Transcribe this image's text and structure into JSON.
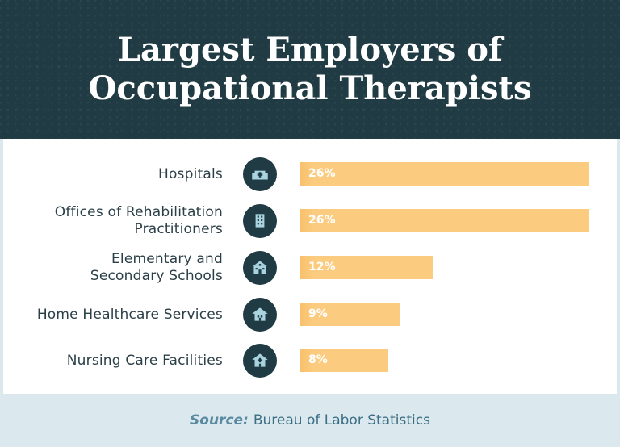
{
  "title_line1": "Largest Employers of",
  "title_line2": "Occupational Therapists",
  "colors": {
    "header_bg": "#203b43",
    "panel_bg": "#ffffff",
    "frame_bg": "#dbe9ee",
    "bar": "#fbc97a",
    "icon_bg": "#203b43",
    "icon_fg": "#a9d3df",
    "source_text": "#3b6e85"
  },
  "chart_data": {
    "type": "bar",
    "orientation": "horizontal",
    "title": "Largest Employers of Occupational Therapists",
    "unit": "%",
    "xlim": [
      0,
      26
    ],
    "grid": false,
    "legend": "none",
    "categories": [
      {
        "label": [
          "Hospitals"
        ],
        "value": 26,
        "value_label": "26%",
        "icon": "hospital-icon"
      },
      {
        "label": [
          "Offices of Rehabilitation",
          "Practitioners"
        ],
        "value": 26,
        "value_label": "26%",
        "icon": "office-building-icon"
      },
      {
        "label": [
          "Elementary and",
          "Secondary Schools"
        ],
        "value": 12,
        "value_label": "12%",
        "icon": "school-icon"
      },
      {
        "label": [
          "Home Healthcare Services"
        ],
        "value": 9,
        "value_label": "9%",
        "icon": "home-health-icon"
      },
      {
        "label": [
          "Nursing Care Facilities"
        ],
        "value": 8,
        "value_label": "8%",
        "icon": "nursing-home-icon"
      }
    ]
  },
  "source": {
    "key": "Source:",
    "value": "Bureau of Labor Statistics"
  }
}
